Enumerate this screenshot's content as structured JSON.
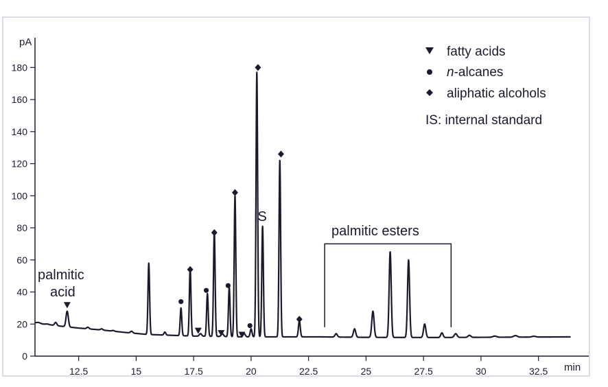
{
  "chart_data": {
    "type": "line",
    "title": "",
    "x_unit": "min",
    "y_unit": "pA",
    "xlim": [
      10.6,
      33.9
    ],
    "ylim": [
      0,
      185
    ],
    "x_ticks": [
      "12.5",
      "15",
      "17.5",
      "20",
      "22.5",
      "25",
      "27.5",
      "30",
      "32.5"
    ],
    "y_ticks": [
      "0",
      "20",
      "40",
      "60",
      "80",
      "100",
      "120",
      "140",
      "160",
      "180"
    ],
    "grid": false,
    "baseline": [
      [
        10.6,
        21
      ],
      [
        11.5,
        19
      ],
      [
        12.5,
        17.5
      ],
      [
        13.5,
        16.3
      ],
      [
        14.5,
        14.8
      ],
      [
        15.5,
        13.5
      ],
      [
        16.5,
        13
      ],
      [
        17.5,
        12.5
      ],
      [
        18.5,
        12.3
      ],
      [
        19.5,
        12
      ],
      [
        21,
        12
      ],
      [
        23,
        12
      ],
      [
        25,
        11.7
      ],
      [
        28,
        11.6
      ],
      [
        31,
        11.8
      ],
      [
        33.9,
        12
      ]
    ],
    "peaks": [
      {
        "rt": 10.75,
        "height": 21,
        "width": 0.05
      },
      {
        "rt": 10.95,
        "height": 20,
        "width": 0.05
      },
      {
        "rt": 11.15,
        "height": 20,
        "width": 0.05
      },
      {
        "rt": 11.5,
        "height": 21,
        "width": 0.05
      },
      {
        "rt": 12.0,
        "height": 28,
        "width": 0.05
      },
      {
        "rt": 12.9,
        "height": 18,
        "width": 0.05
      },
      {
        "rt": 13.5,
        "height": 17,
        "width": 0.05
      },
      {
        "rt": 14.0,
        "height": 16,
        "width": 0.05
      },
      {
        "rt": 14.8,
        "height": 15.5,
        "width": 0.05
      },
      {
        "rt": 15.55,
        "height": 58,
        "width": 0.035
      },
      {
        "rt": 16.25,
        "height": 15,
        "width": 0.04
      },
      {
        "rt": 16.95,
        "height": 30,
        "width": 0.035
      },
      {
        "rt": 17.35,
        "height": 55,
        "width": 0.035
      },
      {
        "rt": 17.8,
        "height": 14,
        "width": 0.05
      },
      {
        "rt": 18.1,
        "height": 39,
        "width": 0.035
      },
      {
        "rt": 18.4,
        "height": 78,
        "width": 0.035
      },
      {
        "rt": 18.75,
        "height": 14,
        "width": 0.05
      },
      {
        "rt": 19.05,
        "height": 43,
        "width": 0.035
      },
      {
        "rt": 19.3,
        "height": 100,
        "width": 0.035
      },
      {
        "rt": 19.7,
        "height": 14,
        "width": 0.05
      },
      {
        "rt": 20.0,
        "height": 17,
        "width": 0.04
      },
      {
        "rt": 20.25,
        "height": 177,
        "width": 0.035
      },
      {
        "rt": 20.5,
        "height": 81,
        "width": 0.035
      },
      {
        "rt": 21.25,
        "height": 122,
        "width": 0.035
      },
      {
        "rt": 22.1,
        "height": 22,
        "width": 0.04
      },
      {
        "rt": 23.7,
        "height": 14,
        "width": 0.05
      },
      {
        "rt": 24.5,
        "height": 17,
        "width": 0.05
      },
      {
        "rt": 25.3,
        "height": 28,
        "width": 0.05
      },
      {
        "rt": 26.05,
        "height": 65,
        "width": 0.045
      },
      {
        "rt": 26.85,
        "height": 60,
        "width": 0.045
      },
      {
        "rt": 27.55,
        "height": 20,
        "width": 0.05
      },
      {
        "rt": 28.3,
        "height": 14.5,
        "width": 0.05
      },
      {
        "rt": 28.9,
        "height": 14,
        "width": 0.06
      },
      {
        "rt": 29.5,
        "height": 13,
        "width": 0.06
      },
      {
        "rt": 30.6,
        "height": 12.5,
        "width": 0.08
      },
      {
        "rt": 31.5,
        "height": 12.8,
        "width": 0.08
      },
      {
        "rt": 32.3,
        "height": 12.4,
        "width": 0.08
      }
    ],
    "markers": [
      {
        "type": "fatty acid",
        "shape": "triangle",
        "x": 12.0,
        "y": 32
      },
      {
        "type": "fatty acid",
        "shape": "triangle",
        "x": 17.7,
        "y": 16
      },
      {
        "type": "fatty acid",
        "shape": "triangle",
        "x": 18.7,
        "y": 14.5
      },
      {
        "type": "fatty acid",
        "shape": "triangle",
        "x": 19.6,
        "y": 13.5
      },
      {
        "type": "n-alkane",
        "shape": "circle",
        "x": 16.95,
        "y": 34
      },
      {
        "type": "n-alkane",
        "shape": "circle",
        "x": 18.05,
        "y": 41
      },
      {
        "type": "n-alkane",
        "shape": "circle",
        "x": 19.0,
        "y": 44
      },
      {
        "type": "n-alkane",
        "shape": "circle",
        "x": 19.95,
        "y": 19
      },
      {
        "type": "aliphatic alcohol",
        "shape": "diamond",
        "x": 17.35,
        "y": 54
      },
      {
        "type": "aliphatic alcohol",
        "shape": "diamond",
        "x": 18.4,
        "y": 77
      },
      {
        "type": "aliphatic alcohol",
        "shape": "diamond",
        "x": 19.3,
        "y": 102
      },
      {
        "type": "aliphatic alcohol",
        "shape": "diamond",
        "x": 20.3,
        "y": 180
      },
      {
        "type": "aliphatic alcohol",
        "shape": "diamond",
        "x": 21.3,
        "y": 126
      },
      {
        "type": "aliphatic alcohol",
        "shape": "diamond",
        "x": 22.1,
        "y": 23
      }
    ],
    "annotations": {
      "palmitic_acid_line1": "palmitic",
      "palmitic_acid_line2": "acid",
      "is_label": "IS",
      "esters_label": "palmitic esters",
      "esters_bracket": {
        "x_start": 23.2,
        "x_end": 28.7,
        "y_top": 70,
        "y_bottom": 18
      }
    },
    "legend": {
      "position": "top-right",
      "items": [
        {
          "symbol": "triangle",
          "text": "fatty acids"
        },
        {
          "symbol": "circle",
          "text_italic": "n",
          "text_rest": "-alcanes"
        },
        {
          "symbol": "diamond",
          "text": "aliphatic alcohols"
        }
      ],
      "note": "IS: internal standard"
    },
    "colors": {
      "trace": "#1a1a2e",
      "frame": "#b8b8c8",
      "background": "#ffffff"
    }
  }
}
